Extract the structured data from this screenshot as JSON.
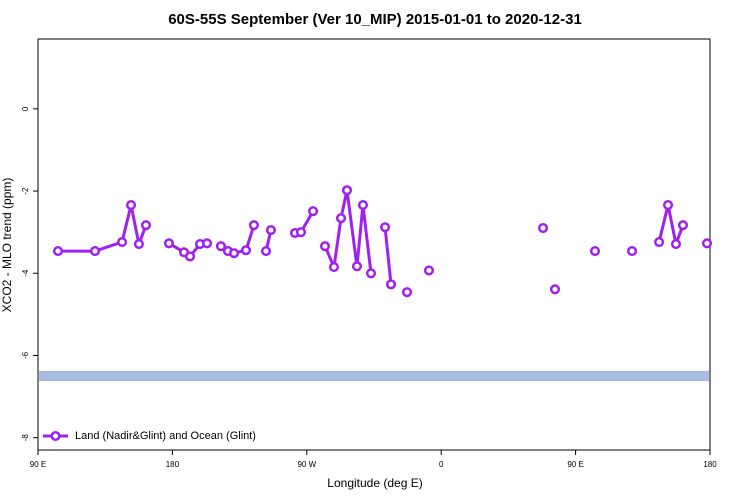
{
  "chart_data": {
    "type": "line",
    "title": "60S-55S September (Ver 10_MIP)   2015-01-01 to 2020-12-31",
    "x_label": "Longitude (deg E)",
    "y_label": "XCO2 - MLO trend (ppm)",
    "xlim": [
      90,
      540
    ],
    "ylim": [
      -8.3,
      1.7
    ],
    "xticks": [
      {
        "value": 90,
        "label": "90 E"
      },
      {
        "value": 180,
        "label": "180"
      },
      {
        "value": 270,
        "label": "90 W"
      },
      {
        "value": 360,
        "label": "0"
      },
      {
        "value": 450,
        "label": "90 E"
      },
      {
        "value": 540,
        "label": "180"
      }
    ],
    "yticks": [
      0,
      -2,
      -4,
      -6,
      -8
    ],
    "hline": {
      "value": -6.5,
      "color": "#a8bde0"
    },
    "legend": "bottom-left",
    "series": [
      {
        "name": "Land (Nadir&Glint) and Ocean (Glint)",
        "color": "#a020f0",
        "x": [
          103.4,
          128.2,
          146.3,
          152.3,
          157.6,
          162.3,
          170,
          177.7,
          187.8,
          191.8,
          198.5,
          203.2,
          208,
          212.5,
          217.2,
          221.3,
          229.3,
          234.6,
          238,
          242.7,
          246.0,
          254,
          262.1,
          266.1,
          274.2,
          278,
          282.2,
          288.2,
          292.9,
          296.9,
          303.6,
          307.6,
          313.0,
          318,
          322.4,
          326.4,
          332,
          337.1,
          344,
          351.8,
          390,
          428.2,
          432,
          436.2,
          450,
          463.0,
          475,
          487.8,
          497,
          505.9,
          511.9,
          517.2,
          521.9,
          530,
          538.0
        ],
        "values": [
          -3.46,
          -3.46,
          -3.24,
          -2.34,
          -3.29,
          -2.83,
          null,
          -3.27,
          -3.49,
          -3.59,
          -3.29,
          -3.27,
          null,
          -3.34,
          -3.46,
          -3.51,
          -3.44,
          -2.83,
          null,
          -3.46,
          -2.95,
          null,
          -3.02,
          -3.0,
          -2.49,
          null,
          -3.34,
          -3.85,
          -2.66,
          -1.98,
          -3.83,
          -2.34,
          -4.0,
          null,
          -2.88,
          -4.27,
          null,
          -4.46,
          null,
          -3.93,
          null,
          -2.9,
          null,
          -4.39,
          null,
          -3.46,
          null,
          -3.46,
          null,
          -3.24,
          -2.34,
          -3.29,
          -2.83,
          null,
          -3.27
        ]
      }
    ]
  }
}
